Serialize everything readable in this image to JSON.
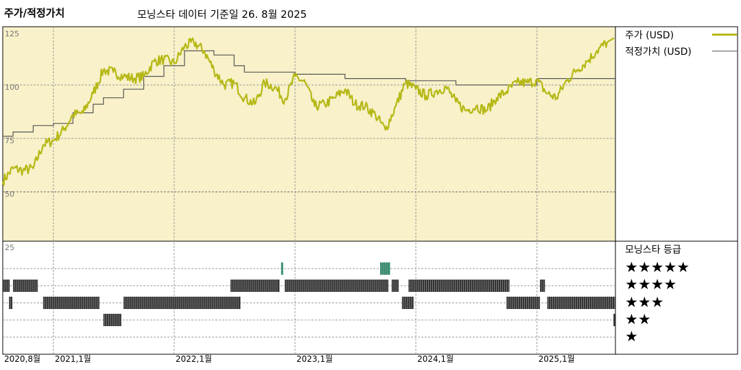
{
  "header": {
    "title": "주가/적정가치",
    "subtitle": "모닝스타 데이터 기준일 26. 8월 2025"
  },
  "legend": {
    "price_label": "주가 (USD)",
    "fair_label": "적정가치 (USD)",
    "price_color": "#b5b814",
    "fair_color": "#555555"
  },
  "rating_panel": {
    "title": "모닝스타 등급",
    "stars": [
      "★★★★★",
      "★★★★",
      "★★★",
      "★★",
      "★"
    ]
  },
  "chart_data": {
    "type": "line",
    "ylim": [
      25,
      125
    ],
    "yticks": [
      "125",
      "100",
      "75",
      "50",
      "25"
    ],
    "xticks": [
      "2020,8월",
      "2021,1월",
      "2022,1월",
      "2023,1월",
      "2024,1월",
      "2025,1월"
    ],
    "series": [
      {
        "name": "주가 (USD)",
        "points": [
          [
            "2020-08-01",
            55
          ],
          [
            "2020-09-01",
            61
          ],
          [
            "2020-10-01",
            60
          ],
          [
            "2020-11-01",
            61
          ],
          [
            "2020-12-01",
            72
          ],
          [
            "2021-01-01",
            74
          ],
          [
            "2021-02-01",
            79
          ],
          [
            "2021-03-01",
            86
          ],
          [
            "2021-04-01",
            87
          ],
          [
            "2021-05-01",
            96
          ],
          [
            "2021-06-01",
            107
          ],
          [
            "2021-07-01",
            106
          ],
          [
            "2021-08-01",
            104
          ],
          [
            "2021-09-01",
            103
          ],
          [
            "2021-10-01",
            104
          ],
          [
            "2021-11-01",
            111
          ],
          [
            "2021-12-01",
            112
          ],
          [
            "2022-01-01",
            110
          ],
          [
            "2022-02-01",
            118
          ],
          [
            "2022-03-01",
            120
          ],
          [
            "2022-04-01",
            116
          ],
          [
            "2022-05-01",
            107
          ],
          [
            "2022-06-01",
            100
          ],
          [
            "2022-07-01",
            101
          ],
          [
            "2022-08-01",
            94
          ],
          [
            "2022-09-01",
            91
          ],
          [
            "2022-10-01",
            101
          ],
          [
            "2022-11-01",
            99
          ],
          [
            "2022-12-01",
            93
          ],
          [
            "2023-01-01",
            104
          ],
          [
            "2023-02-01",
            101
          ],
          [
            "2023-03-01",
            90
          ],
          [
            "2023-04-01",
            91
          ],
          [
            "2023-05-01",
            94
          ],
          [
            "2023-06-01",
            98
          ],
          [
            "2023-07-01",
            91
          ],
          [
            "2023-08-01",
            90
          ],
          [
            "2023-09-01",
            86
          ],
          [
            "2023-10-01",
            79
          ],
          [
            "2023-11-01",
            90
          ],
          [
            "2023-12-01",
            101
          ],
          [
            "2024-01-01",
            98
          ],
          [
            "2024-02-01",
            95
          ],
          [
            "2024-03-01",
            97
          ],
          [
            "2024-04-01",
            99
          ],
          [
            "2024-05-01",
            92
          ],
          [
            "2024-06-01",
            88
          ],
          [
            "2024-07-01",
            90
          ],
          [
            "2024-08-01",
            88
          ],
          [
            "2024-09-01",
            94
          ],
          [
            "2024-10-01",
            97
          ],
          [
            "2024-11-01",
            101
          ],
          [
            "2024-12-01",
            101
          ],
          [
            "2025-01-01",
            102
          ],
          [
            "2025-02-01",
            96
          ],
          [
            "2025-03-01",
            94
          ],
          [
            "2025-04-01",
            102
          ],
          [
            "2025-05-01",
            107
          ],
          [
            "2025-06-01",
            111
          ],
          [
            "2025-07-01",
            116
          ],
          [
            "2025-08-01",
            120
          ]
        ]
      },
      {
        "name": "적정가치 (USD)",
        "step": true,
        "points": [
          [
            "2020-08-01",
            76
          ],
          [
            "2020-09-01",
            78
          ],
          [
            "2020-11-01",
            81
          ],
          [
            "2021-01-01",
            82
          ],
          [
            "2021-03-01",
            87
          ],
          [
            "2021-05-01",
            91
          ],
          [
            "2021-06-01",
            94
          ],
          [
            "2021-08-01",
            98
          ],
          [
            "2021-10-01",
            104
          ],
          [
            "2021-12-01",
            109
          ],
          [
            "2022-02-01",
            116
          ],
          [
            "2022-05-01",
            114
          ],
          [
            "2022-07-01",
            109
          ],
          [
            "2022-08-01",
            106
          ],
          [
            "2023-01-01",
            105
          ],
          [
            "2023-06-01",
            103
          ],
          [
            "2023-12-01",
            102
          ],
          [
            "2024-05-01",
            100
          ],
          [
            "2025-01-01",
            103
          ],
          [
            "2025-05-01",
            103
          ],
          [
            "2025-08-26",
            103
          ]
        ]
      }
    ],
    "ratings": [
      {
        "stars": 5,
        "periods": [
          [
            "2022-11-20",
            "2022-11-26"
          ],
          [
            "2023-09-15",
            "2023-10-15"
          ]
        ]
      },
      {
        "stars": 4,
        "periods": [
          [
            "2020-08-01",
            "2020-08-22"
          ],
          [
            "2020-09-01",
            "2020-11-15"
          ],
          [
            "2022-06-20",
            "2022-11-15"
          ],
          [
            "2022-12-01",
            "2023-10-10"
          ],
          [
            "2023-10-20",
            "2023-11-10"
          ],
          [
            "2023-12-10",
            "2024-10-10"
          ],
          [
            "2025-01-10",
            "2025-01-25"
          ]
        ]
      },
      {
        "stars": 3,
        "periods": [
          [
            "2020-08-20",
            "2020-08-30"
          ],
          [
            "2020-12-01",
            "2021-05-20"
          ],
          [
            "2021-08-01",
            "2022-07-20"
          ],
          [
            "2023-11-20",
            "2023-12-25"
          ],
          [
            "2024-10-01",
            "2025-01-10"
          ],
          [
            "2025-02-01",
            "2025-08-26"
          ]
        ]
      },
      {
        "stars": 2,
        "periods": [
          [
            "2021-06-01",
            "2021-07-25"
          ],
          [
            "2025-08-20",
            "2025-08-26"
          ]
        ]
      },
      {
        "stars": 1,
        "periods": []
      }
    ]
  }
}
